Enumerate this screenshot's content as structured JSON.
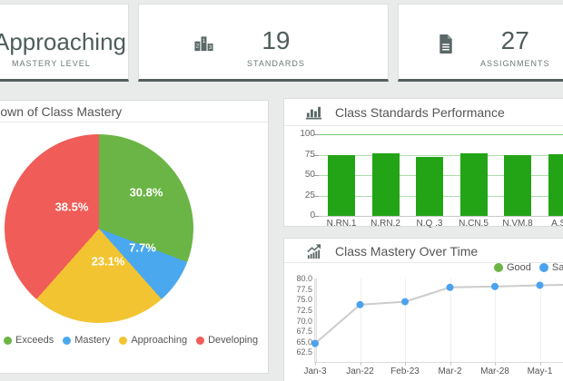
{
  "cards": [
    {
      "value": "Approaching",
      "label": "MASTERY LEVEL"
    },
    {
      "icon": "podium-icon",
      "value": "19",
      "label": "STANDARDS"
    },
    {
      "icon": "document-icon",
      "value": "27",
      "label": "ASSIGNMENTS"
    }
  ],
  "panels": {
    "pie": {
      "title": "Breakdown of Class Mastery"
    },
    "bar": {
      "title": "Class Standards Performance",
      "icon": "bar-chart-icon"
    },
    "line": {
      "title": "Class Mastery Over Time",
      "icon": "trend-chart-icon"
    }
  },
  "colors": {
    "card_accent": "#53605f",
    "icon": "#5a6867",
    "panel_title": "#555555",
    "bar_green": "#23a417",
    "grid_green": "#abdcab",
    "grid_green_strong": "#74c874",
    "axis_gray": "#c9c9c9",
    "line_gray": "#cccccc",
    "point_blue": "#4aa3ee"
  },
  "chart_data": [
    {
      "type": "pie",
      "title": "Breakdown of Class Mastery",
      "labels": [
        "Exceeds",
        "Mastery",
        "Approaching",
        "Developing"
      ],
      "values": [
        30.8,
        7.7,
        23.1,
        38.5
      ],
      "value_labels": [
        "30.8%",
        "7.7%",
        "23.1%",
        "38.5%"
      ],
      "colors": [
        "#6ab545",
        "#4aa8ee",
        "#f2c431",
        "#f05c57"
      ],
      "legend_position": "bottom"
    },
    {
      "type": "bar",
      "title": "Class Standards Performance",
      "categories": [
        "N.RN.1",
        "N.RN.2",
        "N.Q .3",
        "N.CN.5",
        "N.VM.8",
        "A.SS"
      ],
      "values": [
        75,
        77,
        72,
        77,
        74,
        76
      ],
      "color": "#23a417",
      "ylim": [
        0,
        100
      ],
      "ytick_labels": [
        "100",
        "75",
        "50",
        "25",
        "0"
      ],
      "grid": "horizontal"
    },
    {
      "type": "line",
      "title": "Class Mastery Over Time",
      "x": [
        "Jan-3",
        "Jan-22",
        "Feb-23",
        "Mar-2",
        "Mar-28",
        "May-1"
      ],
      "series": [
        {
          "name": "Satisfactory",
          "color": "#4aa3ee",
          "values": [
            64.6,
            73.8,
            74.5,
            77.9,
            78.1,
            78.4
          ]
        }
      ],
      "legend": [
        {
          "label": "Good",
          "color": "#6ab545"
        },
        {
          "label": "Satisfactory",
          "color": "#4aa3ee"
        }
      ],
      "ylim": [
        62.5,
        80.0
      ],
      "ytick_labels": [
        "80.0",
        "77.5",
        "75.0",
        "72.5",
        "70.0",
        "67.5",
        "65.0",
        "62.5"
      ],
      "line_color": "#cccccc",
      "legend_position": "top-right"
    }
  ]
}
